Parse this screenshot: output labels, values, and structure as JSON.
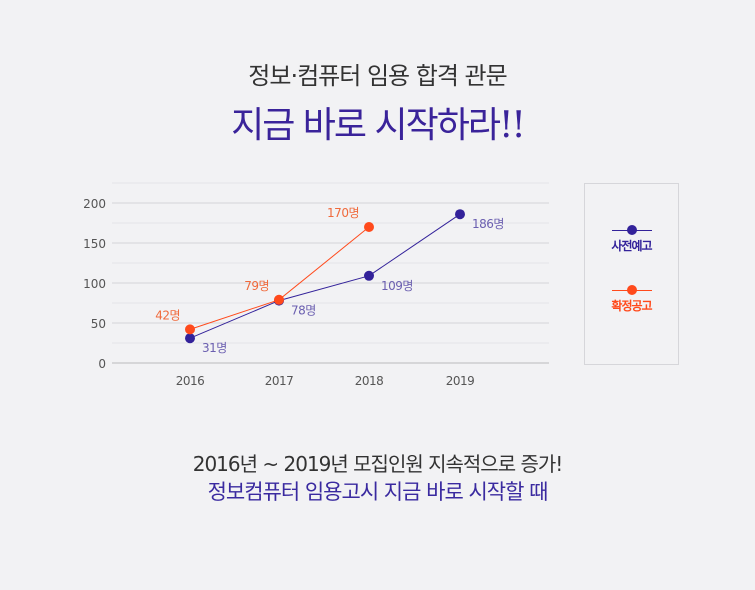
{
  "header": {
    "subtitle": "정보·컴퓨터 임용 합격 관문",
    "title": "지금 바로 시작하라!!"
  },
  "chart_data": {
    "type": "line",
    "categories": [
      "2016",
      "2017",
      "2018",
      "2019"
    ],
    "ylim": [
      0,
      225
    ],
    "yticks": [
      "0",
      "50",
      "100",
      "150",
      "200"
    ],
    "grid": true,
    "legend_position": "right",
    "series": [
      {
        "name": "사전예고",
        "color": "#33229a",
        "values": [
          31,
          78,
          109,
          186
        ],
        "labels": [
          "31명",
          "78명",
          "109명",
          "186명"
        ]
      },
      {
        "name": "확정공고",
        "color": "#ff4a1c",
        "values": [
          42,
          79,
          170,
          null
        ],
        "labels": [
          "42명",
          "79명",
          "170명",
          null
        ]
      }
    ]
  },
  "footer": {
    "line1": "2016년 ~ 2019년 모집인원 지속적으로 증가!",
    "line2": "정보컴퓨터 임용고시 지금 바로 시작할 때"
  }
}
